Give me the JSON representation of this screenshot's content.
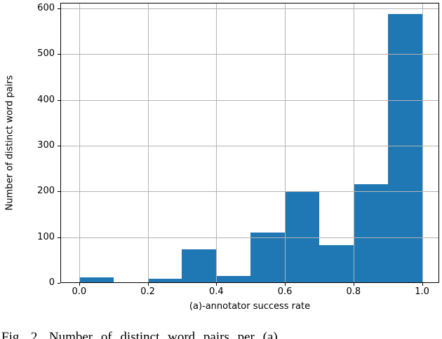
{
  "figure": {
    "ylabel": "Number of distinct word pairs",
    "xlabel": "(a)-annotator success rate",
    "caption": "Fig. 2.  Number of distinct word pairs per (a)"
  },
  "chart_data": {
    "type": "bar",
    "subtype": "histogram",
    "title": "",
    "xlabel": "(a)-annotator success rate",
    "ylabel": "Number of distinct word pairs",
    "bin_edges": [
      0.0,
      0.1,
      0.2,
      0.3,
      0.4,
      0.5,
      0.6,
      0.7,
      0.8,
      0.9,
      1.0
    ],
    "values": [
      12,
      0,
      9,
      74,
      16,
      110,
      200,
      83,
      216,
      588
    ],
    "xticks": [
      {
        "value": 0.0,
        "label": "0.0"
      },
      {
        "value": 0.2,
        "label": "0.2"
      },
      {
        "value": 0.4,
        "label": "0.4"
      },
      {
        "value": 0.6,
        "label": "0.6"
      },
      {
        "value": 0.8,
        "label": "0.8"
      },
      {
        "value": 1.0,
        "label": "1.0"
      }
    ],
    "yticks": [
      {
        "value": 0,
        "label": "0"
      },
      {
        "value": 100,
        "label": "100"
      },
      {
        "value": 200,
        "label": "200"
      },
      {
        "value": 300,
        "label": "300"
      },
      {
        "value": 400,
        "label": "400"
      },
      {
        "value": 500,
        "label": "500"
      },
      {
        "value": 600,
        "label": "600"
      }
    ],
    "xlim": [
      -0.055,
      1.05
    ],
    "ylim": [
      0,
      612
    ],
    "grid": true,
    "grid_above_bars": true,
    "legend": "none",
    "bar_color": "#1f77b4",
    "grid_color": "#b4b4b4",
    "spine_color": "#000000"
  }
}
